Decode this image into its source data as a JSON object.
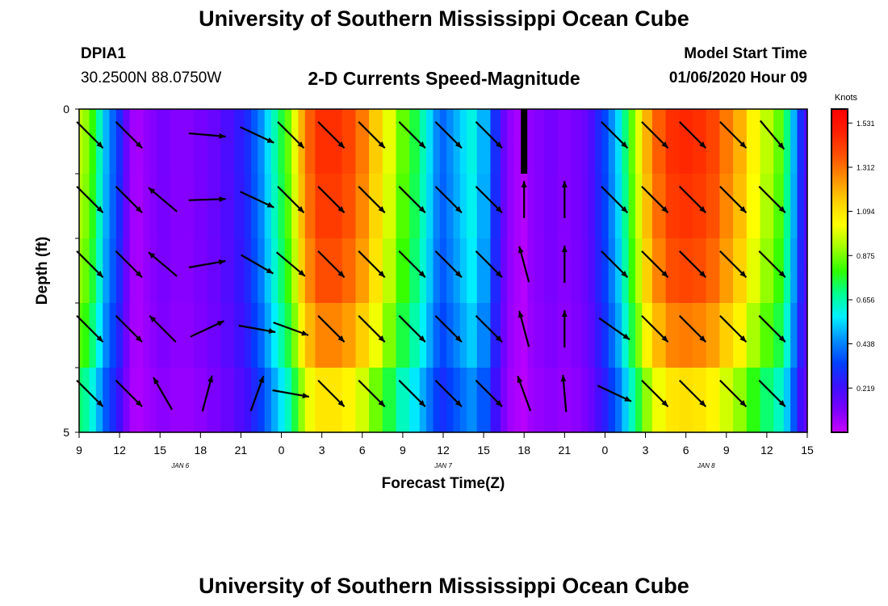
{
  "header": {
    "top_title": "University of Southern Mississippi Ocean Cube",
    "station_id": "DPIA1",
    "station_coords": "30.2500N 88.0750W",
    "chart_title": "2-D Currents Speed-Magnitude",
    "model_label": "Model Start Time",
    "model_time": "01/06/2020 Hour 09"
  },
  "footer": {
    "bottom_title": "University of Southern Mississippi Ocean Cube"
  },
  "colors": {
    "colormap": [
      "#c800ff",
      "#7a00ff",
      "#3c10ff",
      "#0040ff",
      "#0090ff",
      "#00f0ff",
      "#00ff90",
      "#30ff00",
      "#a0ff00",
      "#ffff00",
      "#ffd000",
      "#ff9000",
      "#ff5000",
      "#ff2000",
      "#ff0000"
    ]
  },
  "chart_data": {
    "type": "heatmap",
    "variable": "2-D current speed magnitude with direction vectors",
    "xlabel": "Forecast Time(Z)",
    "ylabel": "Depth (ft)",
    "xlim": [
      0,
      54
    ],
    "ylim": [
      0,
      5
    ],
    "x_ticks": [
      {
        "t": 0,
        "label": "9"
      },
      {
        "t": 3,
        "label": "12"
      },
      {
        "t": 6,
        "label": "15"
      },
      {
        "t": 9,
        "label": "18"
      },
      {
        "t": 12,
        "label": "21"
      },
      {
        "t": 15,
        "label": "0"
      },
      {
        "t": 18,
        "label": "3"
      },
      {
        "t": 21,
        "label": "6"
      },
      {
        "t": 24,
        "label": "9"
      },
      {
        "t": 27,
        "label": "12"
      },
      {
        "t": 30,
        "label": "15"
      },
      {
        "t": 33,
        "label": "18"
      },
      {
        "t": 36,
        "label": "21"
      },
      {
        "t": 39,
        "label": "0"
      },
      {
        "t": 42,
        "label": "3"
      },
      {
        "t": 45,
        "label": "6"
      },
      {
        "t": 48,
        "label": "9"
      },
      {
        "t": 51,
        "label": "12"
      },
      {
        "t": 54,
        "label": "15"
      }
    ],
    "date_labels": [
      {
        "t": 7.5,
        "label": "JAN 6"
      },
      {
        "t": 27,
        "label": "JAN 7"
      },
      {
        "t": 46.5,
        "label": "JAN 8"
      }
    ],
    "y_ticks": [
      {
        "d": 0,
        "label": "0"
      },
      {
        "d": 1,
        "label": ""
      },
      {
        "d": 2,
        "label": ""
      },
      {
        "d": 3,
        "label": ""
      },
      {
        "d": 4,
        "label": ""
      },
      {
        "d": 5,
        "label": "5"
      }
    ],
    "colorbar": {
      "label": "Knots",
      "min": 0,
      "max": 1.6,
      "tick_labels": [
        "1.531",
        "1.312",
        "1.094",
        "0.875",
        "0.656",
        "0.438",
        "0.219"
      ],
      "tick_values": [
        1.531,
        1.312,
        1.094,
        0.875,
        0.656,
        0.438,
        0.219
      ]
    },
    "time_columns": [
      0,
      0.5,
      1,
      1.5,
      2,
      2.5,
      3,
      3.5,
      4,
      4.5,
      5,
      5.5,
      6,
      6.5,
      7,
      8,
      9,
      10,
      11,
      12,
      12.5,
      13,
      13.5,
      14,
      14.5,
      15,
      15.5,
      16,
      16.5,
      17,
      18,
      19,
      20,
      21,
      22,
      23,
      24,
      25,
      25.5,
      26,
      26.5,
      27,
      27.5,
      28,
      28.5,
      29,
      30,
      31,
      31.5,
      32,
      32.5,
      33,
      33.5,
      34,
      35,
      36,
      37,
      37.5,
      38,
      38.5,
      39,
      39.5,
      40,
      40.5,
      41,
      41.5,
      42,
      43,
      44,
      45,
      46,
      47,
      48,
      49,
      50,
      51,
      52,
      52.5,
      53,
      53.5,
      54
    ],
    "depth_rows": [
      0.25,
      0.75,
      1.25,
      1.75,
      2.25,
      2.75,
      3.25,
      3.75,
      4.25,
      4.75
    ],
    "speed_profile": [
      0.95,
      0.9,
      0.8,
      0.65,
      0.5,
      0.4,
      0.3,
      0.15,
      0.06,
      0.05,
      0.08,
      0.1,
      0.12,
      0.12,
      0.1,
      0.1,
      0.12,
      0.15,
      0.2,
      0.25,
      0.3,
      0.38,
      0.45,
      0.55,
      0.65,
      0.75,
      0.85,
      1.0,
      1.2,
      1.35,
      1.45,
      1.45,
      1.4,
      1.3,
      1.15,
      1.0,
      0.85,
      0.75,
      0.65,
      0.55,
      0.45,
      0.4,
      0.45,
      0.5,
      0.55,
      0.6,
      0.5,
      0.3,
      0.15,
      0.08,
      0.05,
      0.03,
      0.08,
      0.1,
      0.12,
      0.1,
      0.12,
      0.15,
      0.2,
      0.28,
      0.35,
      0.45,
      0.55,
      0.7,
      0.85,
      1.0,
      1.2,
      1.35,
      1.45,
      1.47,
      1.45,
      1.4,
      1.3,
      1.2,
      1.05,
      0.95,
      0.85,
      0.7,
      0.5,
      0.3,
      0.2
    ],
    "depth_factor": [
      1.0,
      1.0,
      0.98,
      0.98,
      0.95,
      0.95,
      0.88,
      0.88,
      0.75,
      0.75
    ],
    "vector_times": [
      0.8,
      3.7,
      6.2,
      9.5,
      13.2,
      15.7,
      18.7,
      21.7,
      24.7,
      27.4,
      30.4,
      33.0,
      36.0,
      39.7,
      42.7,
      45.5,
      48.5,
      51.4
    ],
    "vector_rows": [
      0.25,
      1.25,
      2.25,
      3.25,
      4.25
    ],
    "vector_dirs": [
      [
        135,
        135,
        135,
        135,
        135
      ],
      [
        135,
        135,
        135,
        135,
        135
      ],
      [
        null,
        310,
        310,
        315,
        330
      ],
      [
        95,
        88,
        80,
        65,
        15
      ],
      [
        115,
        115,
        120,
        100,
        20
      ],
      [
        135,
        135,
        130,
        110,
        100
      ],
      [
        135,
        135,
        135,
        135,
        135
      ],
      [
        135,
        135,
        135,
        135,
        135
      ],
      [
        135,
        135,
        135,
        135,
        135
      ],
      [
        135,
        135,
        135,
        135,
        135
      ],
      [
        135,
        135,
        135,
        135,
        135
      ],
      [
        null,
        0,
        345,
        345,
        340
      ],
      [
        null,
        0,
        0,
        0,
        355
      ],
      [
        135,
        135,
        135,
        125,
        115
      ],
      [
        135,
        135,
        135,
        135,
        135
      ],
      [
        135,
        135,
        135,
        135,
        135
      ],
      [
        135,
        135,
        135,
        135,
        135
      ],
      [
        140,
        135,
        135,
        135,
        135
      ]
    ],
    "missing_cell": {
      "t": 33,
      "d": [
        0,
        1.0
      ]
    }
  }
}
